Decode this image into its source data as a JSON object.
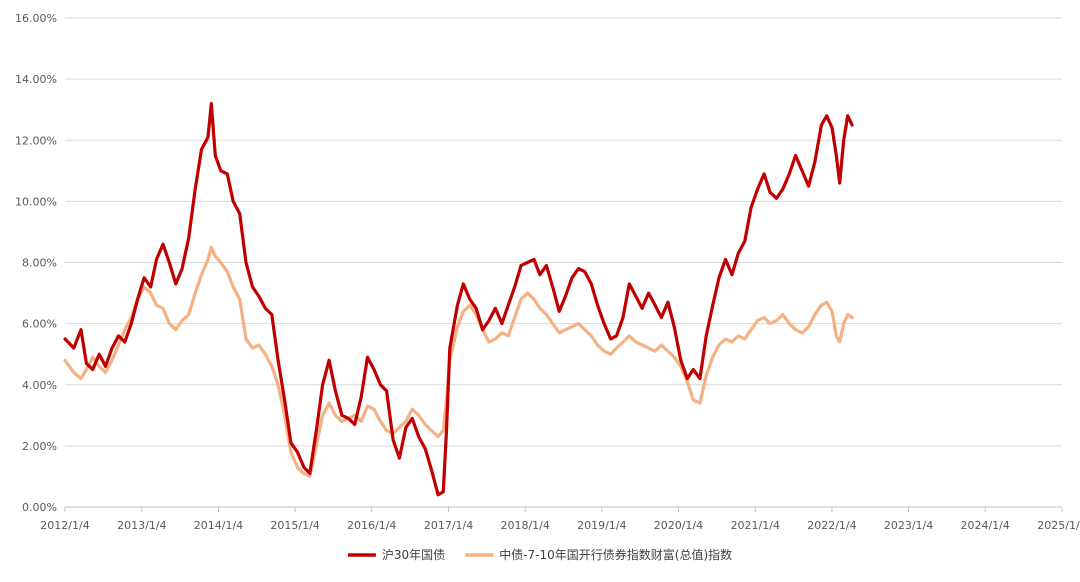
{
  "chart_data": {
    "type": "line",
    "title": "",
    "xlabel": "",
    "ylabel": "",
    "ylim": [
      0,
      16
    ],
    "y_ticks": [
      "0.00%",
      "2.00%",
      "4.00%",
      "6.00%",
      "8.00%",
      "10.00%",
      "12.00%",
      "14.00%",
      "16.00%"
    ],
    "x_ticks": [
      "2012/1/4",
      "2013/1/4",
      "2014/1/4",
      "2015/1/4",
      "2016/1/4",
      "2017/1/4",
      "2018/1/4",
      "2019/1/4",
      "2020/1/4",
      "2021/1/4",
      "2022/1/4",
      "2023/1/4",
      "2024/1/4",
      "2025/1/4"
    ],
    "grid": true,
    "legend_position": "bottom",
    "series": [
      {
        "name": "沪30年国债",
        "color": "#c00000",
        "points": [
          [
            "2012/1/4",
            5.5
          ],
          [
            "2012/2/15",
            5.2
          ],
          [
            "2012/3/20",
            5.8
          ],
          [
            "2012/4/15",
            4.7
          ],
          [
            "2012/5/15",
            4.5
          ],
          [
            "2012/6/15",
            5.0
          ],
          [
            "2012/7/15",
            4.6
          ],
          [
            "2012/8/15",
            5.2
          ],
          [
            "2012/9/15",
            5.6
          ],
          [
            "2012/10/15",
            5.4
          ],
          [
            "2012/11/15",
            6.0
          ],
          [
            "2012/12/15",
            6.8
          ],
          [
            "2013/1/15",
            7.5
          ],
          [
            "2013/2/15",
            7.2
          ],
          [
            "2013/3/15",
            8.1
          ],
          [
            "2013/4/15",
            8.6
          ],
          [
            "2013/5/15",
            8.0
          ],
          [
            "2013/6/15",
            7.3
          ],
          [
            "2013/7/15",
            7.8
          ],
          [
            "2013/8/15",
            8.8
          ],
          [
            "2013/9/15",
            10.4
          ],
          [
            "2013/10/15",
            11.7
          ],
          [
            "2013/11/15",
            12.1
          ],
          [
            "2013/12/1",
            13.2
          ],
          [
            "2013/12/20",
            11.5
          ],
          [
            "2014/1/15",
            11.0
          ],
          [
            "2014/2/15",
            10.9
          ],
          [
            "2014/3/15",
            10.0
          ],
          [
            "2014/4/15",
            9.6
          ],
          [
            "2014/5/15",
            8.0
          ],
          [
            "2014/6/15",
            7.2
          ],
          [
            "2014/7/15",
            6.9
          ],
          [
            "2014/8/15",
            6.5
          ],
          [
            "2014/9/15",
            6.3
          ],
          [
            "2014/10/15",
            4.8
          ],
          [
            "2014/11/15",
            3.5
          ],
          [
            "2014/12/15",
            2.1
          ],
          [
            "2015/1/15",
            1.8
          ],
          [
            "2015/2/15",
            1.3
          ],
          [
            "2015/3/15",
            1.1
          ],
          [
            "2015/4/15",
            2.5
          ],
          [
            "2015/5/15",
            4.0
          ],
          [
            "2015/6/15",
            4.8
          ],
          [
            "2015/7/15",
            3.8
          ],
          [
            "2015/8/15",
            3.0
          ],
          [
            "2015/9/15",
            2.9
          ],
          [
            "2015/10/15",
            2.7
          ],
          [
            "2015/11/15",
            3.6
          ],
          [
            "2015/12/15",
            4.9
          ],
          [
            "2016/1/15",
            4.5
          ],
          [
            "2016/2/15",
            4.0
          ],
          [
            "2016/3/15",
            3.8
          ],
          [
            "2016/4/15",
            2.2
          ],
          [
            "2016/5/15",
            1.6
          ],
          [
            "2016/6/15",
            2.6
          ],
          [
            "2016/7/15",
            2.9
          ],
          [
            "2016/8/15",
            2.3
          ],
          [
            "2016/9/15",
            1.9
          ],
          [
            "2016/10/15",
            1.2
          ],
          [
            "2016/11/15",
            0.4
          ],
          [
            "2016/12/10",
            0.5
          ],
          [
            "2016/12/25",
            2.5
          ],
          [
            "2017/1/10",
            5.2
          ],
          [
            "2017/2/15",
            6.6
          ],
          [
            "2017/3/15",
            7.3
          ],
          [
            "2017/4/15",
            6.8
          ],
          [
            "2017/5/15",
            6.5
          ],
          [
            "2017/6/15",
            5.8
          ],
          [
            "2017/7/15",
            6.1
          ],
          [
            "2017/8/15",
            6.5
          ],
          [
            "2017/9/15",
            6.0
          ],
          [
            "2017/10/15",
            6.6
          ],
          [
            "2017/11/15",
            7.2
          ],
          [
            "2017/12/15",
            7.9
          ],
          [
            "2018/1/15",
            8.0
          ],
          [
            "2018/2/15",
            8.1
          ],
          [
            "2018/3/15",
            7.6
          ],
          [
            "2018/4/15",
            7.9
          ],
          [
            "2018/5/15",
            7.2
          ],
          [
            "2018/6/15",
            6.4
          ],
          [
            "2018/7/15",
            6.9
          ],
          [
            "2018/8/15",
            7.5
          ],
          [
            "2018/9/15",
            7.8
          ],
          [
            "2018/10/15",
            7.7
          ],
          [
            "2018/11/15",
            7.3
          ],
          [
            "2018/12/15",
            6.6
          ],
          [
            "2019/1/15",
            6.0
          ],
          [
            "2019/2/15",
            5.5
          ],
          [
            "2019/3/15",
            5.6
          ],
          [
            "2019/4/15",
            6.2
          ],
          [
            "2019/5/15",
            7.3
          ],
          [
            "2019/6/15",
            6.9
          ],
          [
            "2019/7/15",
            6.5
          ],
          [
            "2019/8/15",
            7.0
          ],
          [
            "2019/9/15",
            6.6
          ],
          [
            "2019/10/15",
            6.2
          ],
          [
            "2019/11/15",
            6.7
          ],
          [
            "2019/12/15",
            5.9
          ],
          [
            "2020/1/15",
            4.8
          ],
          [
            "2020/2/15",
            4.2
          ],
          [
            "2020/3/15",
            4.5
          ],
          [
            "2020/4/15",
            4.2
          ],
          [
            "2020/5/15",
            5.6
          ],
          [
            "2020/6/15",
            6.6
          ],
          [
            "2020/7/15",
            7.5
          ],
          [
            "2020/8/15",
            8.1
          ],
          [
            "2020/9/15",
            7.6
          ],
          [
            "2020/10/15",
            8.3
          ],
          [
            "2020/11/15",
            8.7
          ],
          [
            "2020/12/15",
            9.8
          ],
          [
            "2021/1/15",
            10.4
          ],
          [
            "2021/2/15",
            10.9
          ],
          [
            "2021/3/15",
            10.3
          ],
          [
            "2021/4/15",
            10.1
          ],
          [
            "2021/5/15",
            10.4
          ],
          [
            "2021/6/15",
            10.9
          ],
          [
            "2021/7/15",
            11.5
          ],
          [
            "2021/8/15",
            11.0
          ],
          [
            "2021/9/15",
            10.5
          ],
          [
            "2021/10/15",
            11.3
          ],
          [
            "2021/11/15",
            12.5
          ],
          [
            "2021/12/10",
            12.8
          ],
          [
            "2022/1/5",
            12.4
          ],
          [
            "2022/1/25",
            11.5
          ],
          [
            "2022/2/10",
            10.6
          ],
          [
            "2022/3/1",
            12.0
          ],
          [
            "2022/3/20",
            12.8
          ],
          [
            "2022/4/10",
            12.5
          ]
        ]
      },
      {
        "name": "中债-7-10年国开行债券指数财富(总值)指数",
        "color": "#f4b183",
        "points": [
          [
            "2012/1/4",
            4.8
          ],
          [
            "2012/2/15",
            4.4
          ],
          [
            "2012/3/20",
            4.2
          ],
          [
            "2012/4/15",
            4.5
          ],
          [
            "2012/5/15",
            4.9
          ],
          [
            "2012/6/15",
            4.6
          ],
          [
            "2012/7/15",
            4.4
          ],
          [
            "2012/8/15",
            4.8
          ],
          [
            "2012/9/15",
            5.3
          ],
          [
            "2012/10/15",
            5.8
          ],
          [
            "2012/11/15",
            6.2
          ],
          [
            "2012/12/15",
            6.8
          ],
          [
            "2013/1/15",
            7.2
          ],
          [
            "2013/2/15",
            7.0
          ],
          [
            "2013/3/15",
            6.6
          ],
          [
            "2013/4/15",
            6.5
          ],
          [
            "2013/5/15",
            6.0
          ],
          [
            "2013/6/15",
            5.8
          ],
          [
            "2013/7/15",
            6.1
          ],
          [
            "2013/8/15",
            6.3
          ],
          [
            "2013/9/15",
            7.0
          ],
          [
            "2013/10/15",
            7.6
          ],
          [
            "2013/11/15",
            8.1
          ],
          [
            "2013/12/1",
            8.5
          ],
          [
            "2013/12/20",
            8.2
          ],
          [
            "2014/1/15",
            8.0
          ],
          [
            "2014/2/15",
            7.7
          ],
          [
            "2014/3/15",
            7.2
          ],
          [
            "2014/4/15",
            6.8
          ],
          [
            "2014/5/15",
            5.5
          ],
          [
            "2014/6/15",
            5.2
          ],
          [
            "2014/7/15",
            5.3
          ],
          [
            "2014/8/15",
            5.0
          ],
          [
            "2014/9/15",
            4.6
          ],
          [
            "2014/10/15",
            4.0
          ],
          [
            "2014/11/15",
            3.0
          ],
          [
            "2014/12/15",
            1.8
          ],
          [
            "2015/1/15",
            1.3
          ],
          [
            "2015/2/15",
            1.1
          ],
          [
            "2015/3/15",
            1.0
          ],
          [
            "2015/4/15",
            2.0
          ],
          [
            "2015/5/15",
            3.0
          ],
          [
            "2015/6/15",
            3.4
          ],
          [
            "2015/7/15",
            3.0
          ],
          [
            "2015/8/15",
            2.8
          ],
          [
            "2015/9/15",
            2.9
          ],
          [
            "2015/10/15",
            3.0
          ],
          [
            "2015/11/15",
            2.8
          ],
          [
            "2015/12/15",
            3.3
          ],
          [
            "2016/1/15",
            3.2
          ],
          [
            "2016/2/15",
            2.8
          ],
          [
            "2016/3/15",
            2.5
          ],
          [
            "2016/4/15",
            2.4
          ],
          [
            "2016/5/15",
            2.6
          ],
          [
            "2016/6/15",
            2.8
          ],
          [
            "2016/7/15",
            3.2
          ],
          [
            "2016/8/15",
            3.0
          ],
          [
            "2016/9/15",
            2.7
          ],
          [
            "2016/10/15",
            2.5
          ],
          [
            "2016/11/15",
            2.3
          ],
          [
            "2016/12/10",
            2.5
          ],
          [
            "2016/12/25",
            3.5
          ],
          [
            "2017/1/10",
            4.8
          ],
          [
            "2017/2/15",
            5.9
          ],
          [
            "2017/3/15",
            6.4
          ],
          [
            "2017/4/15",
            6.6
          ],
          [
            "2017/5/15",
            6.3
          ],
          [
            "2017/6/15",
            5.8
          ],
          [
            "2017/7/15",
            5.4
          ],
          [
            "2017/8/15",
            5.5
          ],
          [
            "2017/9/15",
            5.7
          ],
          [
            "2017/10/15",
            5.6
          ],
          [
            "2017/11/15",
            6.2
          ],
          [
            "2017/12/15",
            6.8
          ],
          [
            "2018/1/15",
            7.0
          ],
          [
            "2018/2/15",
            6.8
          ],
          [
            "2018/3/15",
            6.5
          ],
          [
            "2018/4/15",
            6.3
          ],
          [
            "2018/5/15",
            6.0
          ],
          [
            "2018/6/15",
            5.7
          ],
          [
            "2018/7/15",
            5.8
          ],
          [
            "2018/8/15",
            5.9
          ],
          [
            "2018/9/15",
            6.0
          ],
          [
            "2018/10/15",
            5.8
          ],
          [
            "2018/11/15",
            5.6
          ],
          [
            "2018/12/15",
            5.3
          ],
          [
            "2019/1/15",
            5.1
          ],
          [
            "2019/2/15",
            5.0
          ],
          [
            "2019/3/15",
            5.2
          ],
          [
            "2019/4/15",
            5.4
          ],
          [
            "2019/5/15",
            5.6
          ],
          [
            "2019/6/15",
            5.4
          ],
          [
            "2019/7/15",
            5.3
          ],
          [
            "2019/8/15",
            5.2
          ],
          [
            "2019/9/15",
            5.1
          ],
          [
            "2019/10/15",
            5.3
          ],
          [
            "2019/11/15",
            5.1
          ],
          [
            "2019/12/15",
            4.9
          ],
          [
            "2020/1/15",
            4.6
          ],
          [
            "2020/2/15",
            4.1
          ],
          [
            "2020/3/15",
            3.5
          ],
          [
            "2020/4/15",
            3.4
          ],
          [
            "2020/5/15",
            4.3
          ],
          [
            "2020/6/15",
            4.9
          ],
          [
            "2020/7/15",
            5.3
          ],
          [
            "2020/8/15",
            5.5
          ],
          [
            "2020/9/15",
            5.4
          ],
          [
            "2020/10/15",
            5.6
          ],
          [
            "2020/11/15",
            5.5
          ],
          [
            "2020/12/15",
            5.8
          ],
          [
            "2021/1/15",
            6.1
          ],
          [
            "2021/2/15",
            6.2
          ],
          [
            "2021/3/15",
            6.0
          ],
          [
            "2021/4/15",
            6.1
          ],
          [
            "2021/5/15",
            6.3
          ],
          [
            "2021/6/15",
            6.0
          ],
          [
            "2021/7/15",
            5.8
          ],
          [
            "2021/8/15",
            5.7
          ],
          [
            "2021/9/15",
            5.9
          ],
          [
            "2021/10/15",
            6.3
          ],
          [
            "2021/11/15",
            6.6
          ],
          [
            "2021/12/10",
            6.7
          ],
          [
            "2022/1/5",
            6.4
          ],
          [
            "2022/1/25",
            5.6
          ],
          [
            "2022/2/10",
            5.4
          ],
          [
            "2022/3/1",
            6.0
          ],
          [
            "2022/3/20",
            6.3
          ],
          [
            "2022/4/10",
            6.2
          ]
        ]
      }
    ]
  }
}
